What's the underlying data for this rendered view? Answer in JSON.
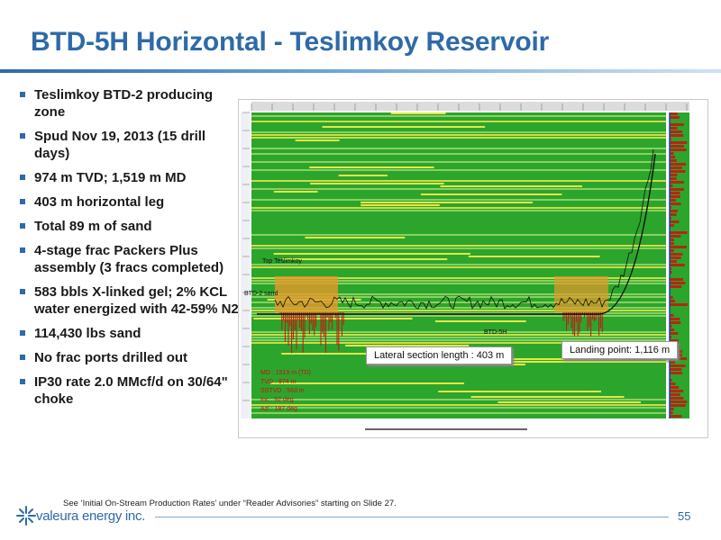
{
  "slide": {
    "title": "BTD-5H Horizontal - Teslimkoy Reservoir",
    "bullets": [
      "Teslimkoy BTD-2 producing zone",
      "Spud Nov 19, 2013 (15 drill days)",
      "974 m TVD; 1,519 m MD",
      "403 m horizontal leg",
      "Total 89 m of sand",
      "4-stage frac Packers Plus assembly (3 fracs completed)",
      "583 bbls X-linked gel; 2% KCL water energized with 42-59% N2",
      "114,430 lbs sand",
      "No frac ports drilled out",
      "IP30 rate 2.0 MMcf/d on 30/64\" choke"
    ],
    "footnote": "See ‘Initial On-Stream Production Rates’ under “Reader Advisories” starting on Slide 27.",
    "page_number": "55"
  },
  "logo": {
    "text": "valeura energy inc.",
    "color": "#2e6aa8"
  },
  "figure": {
    "callouts": {
      "lateral": "Lateral section length : 403 m",
      "landing": "Landing point: 1,116 m"
    },
    "log_labels": {
      "top": "Top Teslimkoy",
      "sand": "BTD-2 sand",
      "well": "BTD-5H",
      "md": "MD : 1519 m (TD)",
      "tvd": "TVD : 974 m",
      "sstvd": "SSTVD : 563 m",
      "inc": "Inc : 92 deg",
      "azi": "Azi : 187 deg"
    },
    "colors": {
      "background": "#2ca52c",
      "stripe_light": "#9bd86a",
      "stripe_yellow": "#e6e64a",
      "red": "#cc1111"
    }
  }
}
